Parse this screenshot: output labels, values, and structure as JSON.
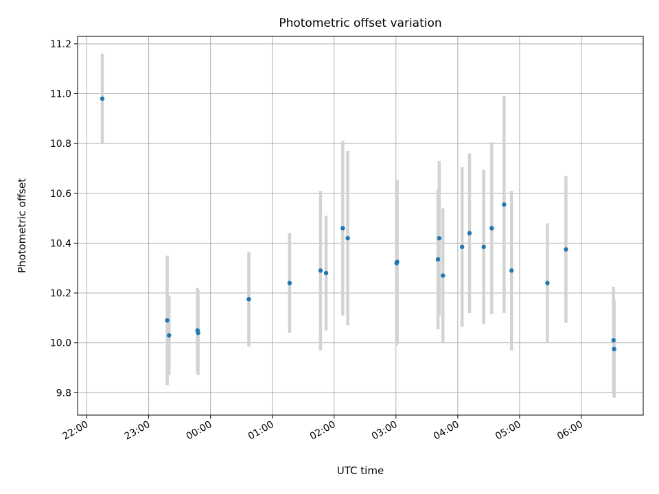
{
  "chart_data": {
    "type": "scatter",
    "title": "Photometric offset variation",
    "xlabel": "UTC time",
    "ylabel": "Photometric offset",
    "x_ticks": [
      "22:00",
      "23:00",
      "00:00",
      "01:00",
      "02:00",
      "03:00",
      "04:00",
      "05:00",
      "06:00"
    ],
    "x_tick_hours": [
      0,
      1,
      2,
      3,
      4,
      5,
      6,
      7,
      8
    ],
    "y_ticks": [
      9.8,
      10.0,
      10.2,
      10.4,
      10.6,
      10.8,
      11.0,
      11.2
    ],
    "xlim_hours": [
      -0.15,
      9.0
    ],
    "ylim": [
      9.71,
      11.23
    ],
    "grid": true,
    "marker_color": "#1f77b4",
    "errorbar_color": "#d3d3d3",
    "points": [
      {
        "x": 0.25,
        "y": 10.98,
        "err": 0.18
      },
      {
        "x": 1.3,
        "y": 10.09,
        "err": 0.26
      },
      {
        "x": 1.33,
        "y": 10.03,
        "err": 0.16
      },
      {
        "x": 1.79,
        "y": 10.05,
        "err": 0.17
      },
      {
        "x": 1.8,
        "y": 10.04,
        "err": 0.17
      },
      {
        "x": 2.62,
        "y": 10.175,
        "err": 0.19
      },
      {
        "x": 3.28,
        "y": 10.24,
        "err": 0.2
      },
      {
        "x": 3.78,
        "y": 10.29,
        "err": 0.32
      },
      {
        "x": 3.87,
        "y": 10.28,
        "err": 0.23
      },
      {
        "x": 4.14,
        "y": 10.46,
        "err": 0.35
      },
      {
        "x": 4.22,
        "y": 10.42,
        "err": 0.35
      },
      {
        "x": 5.01,
        "y": 10.32,
        "err": 0.33
      },
      {
        "x": 5.02,
        "y": 10.325,
        "err": 0.33
      },
      {
        "x": 5.68,
        "y": 10.335,
        "err": 0.28
      },
      {
        "x": 5.7,
        "y": 10.42,
        "err": 0.31
      },
      {
        "x": 5.76,
        "y": 10.27,
        "err": 0.27
      },
      {
        "x": 6.07,
        "y": 10.385,
        "err": 0.32
      },
      {
        "x": 6.19,
        "y": 10.44,
        "err": 0.32
      },
      {
        "x": 6.42,
        "y": 10.385,
        "err": 0.31
      },
      {
        "x": 6.55,
        "y": 10.46,
        "err": 0.345
      },
      {
        "x": 6.75,
        "y": 10.555,
        "err": 0.435
      },
      {
        "x": 6.87,
        "y": 10.29,
        "err": 0.32
      },
      {
        "x": 7.45,
        "y": 10.24,
        "err": 0.24
      },
      {
        "x": 7.75,
        "y": 10.375,
        "err": 0.295
      },
      {
        "x": 8.52,
        "y": 10.01,
        "err": 0.215
      },
      {
        "x": 8.53,
        "y": 9.975,
        "err": 0.195
      }
    ]
  }
}
